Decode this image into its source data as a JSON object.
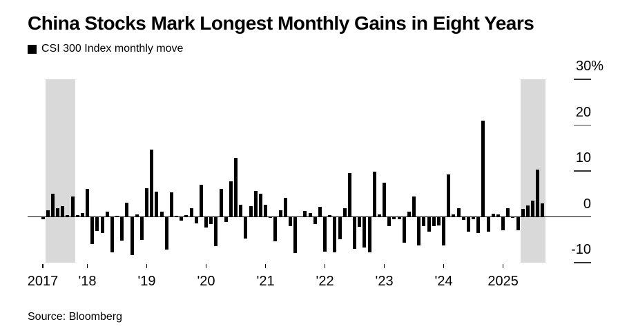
{
  "header": {
    "title": "China Stocks Mark Longest Monthly Gains in Eight Years",
    "legend": {
      "swatch_color": "#000000",
      "label": "CSI 300 Index monthly move"
    }
  },
  "source": {
    "text": "Source: Bloomberg"
  },
  "chart_data": {
    "type": "bar",
    "title": "China Stocks Mark Longest Monthly Gains in Eight Years",
    "series_name": "CSI 300 Index monthly move",
    "unit": "%",
    "frequency": "monthly",
    "x_start": "2017-04",
    "x_end": "2025-09",
    "months": [
      "2017-04",
      "2017-05",
      "2017-06",
      "2017-07",
      "2017-08",
      "2017-09",
      "2017-10",
      "2017-11",
      "2017-12",
      "2018-01",
      "2018-02",
      "2018-03",
      "2018-04",
      "2018-05",
      "2018-06",
      "2018-07",
      "2018-08",
      "2018-09",
      "2018-10",
      "2018-11",
      "2018-12",
      "2019-01",
      "2019-02",
      "2019-03",
      "2019-04",
      "2019-05",
      "2019-06",
      "2019-07",
      "2019-08",
      "2019-09",
      "2019-10",
      "2019-11",
      "2019-12",
      "2020-01",
      "2020-02",
      "2020-03",
      "2020-04",
      "2020-05",
      "2020-06",
      "2020-07",
      "2020-08",
      "2020-09",
      "2020-10",
      "2020-11",
      "2020-12",
      "2021-01",
      "2021-02",
      "2021-03",
      "2021-04",
      "2021-05",
      "2021-06",
      "2021-07",
      "2021-08",
      "2021-09",
      "2021-10",
      "2021-11",
      "2021-12",
      "2022-01",
      "2022-02",
      "2022-03",
      "2022-04",
      "2022-05",
      "2022-06",
      "2022-07",
      "2022-08",
      "2022-09",
      "2022-10",
      "2022-11",
      "2022-12",
      "2023-01",
      "2023-02",
      "2023-03",
      "2023-04",
      "2023-05",
      "2023-06",
      "2023-07",
      "2023-08",
      "2023-09",
      "2023-10",
      "2023-11",
      "2023-12",
      "2024-01",
      "2024-02",
      "2024-03",
      "2024-04",
      "2024-05",
      "2024-06",
      "2024-07",
      "2024-08",
      "2024-09",
      "2024-10",
      "2024-11",
      "2024-12",
      "2025-01",
      "2025-02",
      "2025-03",
      "2025-04",
      "2025-05",
      "2025-06",
      "2025-07",
      "2025-08",
      "2025-09"
    ],
    "values": [
      -0.5,
      1.5,
      5.0,
      1.9,
      2.3,
      0.4,
      4.4,
      0.4,
      0.9,
      6.1,
      -5.9,
      -3.1,
      -3.6,
      1.2,
      -7.7,
      0.2,
      -5.2,
      3.1,
      -8.3,
      0.6,
      -5.1,
      6.3,
      14.6,
      5.5,
      1.1,
      -7.2,
      5.4,
      0.3,
      -0.9,
      0.4,
      1.9,
      -1.5,
      7.0,
      -2.3,
      -1.6,
      -6.4,
      6.1,
      -1.2,
      7.7,
      12.8,
      2.6,
      -4.8,
      2.4,
      5.6,
      5.1,
      2.7,
      -0.3,
      -5.4,
      1.5,
      4.1,
      -2.0,
      -7.9,
      0.1,
      1.3,
      0.9,
      -1.6,
      2.2,
      -7.6,
      0.4,
      -7.8,
      -4.9,
      1.9,
      9.6,
      -7.0,
      -2.2,
      -6.7,
      -7.8,
      9.8,
      0.5,
      7.4,
      -2.1,
      -0.5,
      -0.5,
      -5.7,
      1.2,
      4.5,
      -6.2,
      -2.0,
      -3.2,
      -2.1,
      -1.9,
      -6.3,
      9.3,
      0.6,
      1.9,
      -0.7,
      -3.3,
      -0.6,
      -3.5,
      21.0,
      -3.2,
      0.7,
      0.5,
      -3.0,
      1.9,
      -0.1,
      -3.0,
      1.8,
      2.5,
      3.5,
      10.3,
      3.0
    ],
    "bar_color": "#000000",
    "highlight_bands": [
      {
        "from": "2017-05",
        "to": "2017-10"
      },
      {
        "from": "2025-05",
        "to": "2025-09"
      }
    ],
    "band_color": "#d9d9d9",
    "grid": false,
    "legend_position": "top-left",
    "y_axis": {
      "side": "right",
      "range": [
        -13,
        31
      ],
      "ticks": [
        {
          "label": "30%",
          "value": 30
        },
        {
          "label": "20",
          "value": 20
        },
        {
          "label": "10",
          "value": 10
        },
        {
          "label": "0",
          "value": 0
        },
        {
          "label": "-10",
          "value": -10
        }
      ]
    },
    "x_axis": {
      "ticks": [
        {
          "label": "2017",
          "month": "2017-04"
        },
        {
          "label": "'18",
          "month": "2018-01"
        },
        {
          "label": "'19",
          "month": "2019-01"
        },
        {
          "label": "'20",
          "month": "2020-01"
        },
        {
          "label": "'21",
          "month": "2021-01"
        },
        {
          "label": "'22",
          "month": "2022-01"
        },
        {
          "label": "'23",
          "month": "2023-01"
        },
        {
          "label": "'24",
          "month": "2024-01"
        },
        {
          "label": "2025",
          "month": "2025-01"
        }
      ]
    }
  }
}
